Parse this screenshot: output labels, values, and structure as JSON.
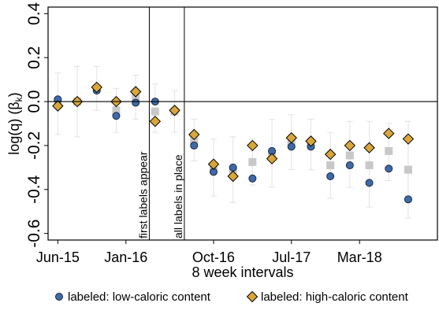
{
  "chart_data": {
    "type": "scatter",
    "xlabel": "8 week intervals",
    "ylabel_main": "log(q) (β",
    "ylabel_sub": "k",
    "ylabel_close": ")",
    "ylim": [
      -0.63,
      0.43
    ],
    "yticks": [
      0.4,
      0.2,
      0.0,
      -0.2,
      -0.4,
      -0.6
    ],
    "ytick_labels": [
      "0.4",
      "0.2",
      "0.0",
      "-0.2",
      "-0.4",
      "-0.6"
    ],
    "xlim": [
      -0.5,
      19.5
    ],
    "xticks": [
      0,
      3.5,
      8,
      12,
      15.5
    ],
    "xtick_labels": [
      "Jun-15",
      "Jan-16",
      "Oct-16",
      "Jul-17",
      "Mar-18"
    ],
    "grid": false,
    "zero_line": true,
    "events": [
      {
        "x": 4.7,
        "label": "first labels appear"
      },
      {
        "x": 6.5,
        "label": "all labels in place"
      }
    ],
    "legend_placement": "bottom",
    "colors": {
      "low": "#3e6aa8",
      "high": "#d9a63c",
      "gray_marker": "#c8c8c8",
      "error_bar": "#e2e2e2"
    },
    "series": [
      {
        "name": "labeled: low-caloric content",
        "marker": "circle",
        "points": [
          [
            0,
            0.01
          ],
          [
            1,
            0.0
          ],
          [
            2,
            0.05
          ],
          [
            3,
            -0.065
          ],
          [
            4,
            -0.005
          ],
          [
            5,
            0.0
          ],
          [
            7,
            -0.2
          ],
          [
            8,
            -0.32
          ],
          [
            9,
            -0.3
          ],
          [
            10,
            -0.35
          ],
          [
            11,
            -0.225
          ],
          [
            12,
            -0.205
          ],
          [
            13,
            -0.205
          ],
          [
            14,
            -0.34
          ],
          [
            15,
            -0.29
          ],
          [
            16,
            -0.37
          ],
          [
            17,
            -0.305
          ],
          [
            18,
            -0.445
          ]
        ]
      },
      {
        "name": "labeled: high-caloric content",
        "marker": "diamond",
        "points": [
          [
            0,
            -0.02
          ],
          [
            1,
            0.0
          ],
          [
            2,
            0.065
          ],
          [
            3,
            0.0
          ],
          [
            4,
            0.045
          ],
          [
            5,
            -0.09
          ],
          [
            6,
            -0.04
          ],
          [
            7,
            -0.15
          ],
          [
            8,
            -0.285
          ],
          [
            9,
            -0.34
          ],
          [
            10,
            -0.2
          ],
          [
            11,
            -0.26
          ],
          [
            12,
            -0.165
          ],
          [
            13,
            -0.18
          ],
          [
            14,
            -0.24
          ],
          [
            15,
            -0.2
          ],
          [
            16,
            -0.21
          ],
          [
            17,
            -0.145
          ],
          [
            18,
            -0.17
          ]
        ]
      },
      {
        "name": "",
        "marker": "square",
        "points": [
          [
            0,
            0.0
          ],
          [
            1,
            0.0
          ],
          [
            2,
            0.06
          ],
          [
            3,
            -0.04
          ],
          [
            4,
            0.02
          ],
          [
            5,
            -0.045
          ],
          [
            6,
            -0.045
          ],
          [
            7,
            -0.175
          ],
          [
            8,
            -0.3
          ],
          [
            9,
            -0.31
          ],
          [
            10,
            -0.275
          ],
          [
            11,
            -0.245
          ],
          [
            12,
            -0.185
          ],
          [
            13,
            -0.195
          ],
          [
            14,
            -0.29
          ],
          [
            15,
            -0.245
          ],
          [
            16,
            -0.29
          ],
          [
            17,
            -0.225
          ],
          [
            18,
            -0.31
          ]
        ],
        "ci": [
          [
            -0.15,
            0.13
          ],
          [
            -0.16,
            0.16
          ],
          [
            -0.04,
            0.16
          ],
          [
            -0.14,
            0.06
          ],
          [
            -0.08,
            0.12
          ],
          [
            -0.14,
            0.08
          ],
          [
            -0.14,
            0.05
          ],
          [
            -0.27,
            -0.08
          ],
          [
            -0.43,
            -0.17
          ],
          [
            -0.46,
            -0.16
          ],
          [
            -0.38,
            -0.17
          ],
          [
            -0.39,
            -0.08
          ],
          [
            -0.31,
            -0.06
          ],
          [
            -0.31,
            -0.08
          ],
          [
            -0.44,
            -0.14
          ],
          [
            -0.39,
            -0.09
          ],
          [
            -0.48,
            -0.09
          ],
          [
            -0.36,
            -0.1
          ],
          [
            -0.53,
            -0.09
          ]
        ]
      }
    ]
  }
}
